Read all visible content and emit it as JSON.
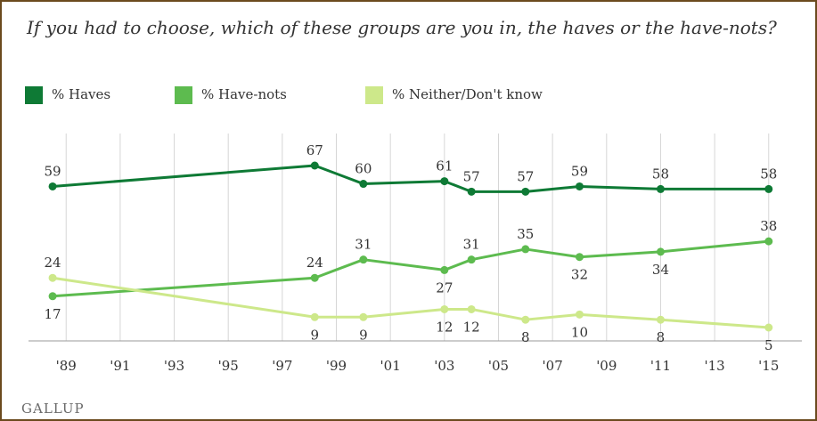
{
  "title": "If you had to choose, which of these groups are you in, the haves or the have-nots?",
  "brand": "GALLUP",
  "chart_data": {
    "type": "line",
    "title": "If you had to choose, which of these groups are you in, the haves or the have-nots?",
    "xlabel": "",
    "ylabel": "",
    "x_tick_labels": [
      "'89",
      "'91",
      "'93",
      "'95",
      "'97",
      "'99",
      "'01",
      "'03",
      "'05",
      "'07",
      "'09",
      "'11",
      "'13",
      "'15"
    ],
    "x_range": [
      1988.3,
      2015.7
    ],
    "ylim": [
      5,
      67
    ],
    "grid": "vertical",
    "legend_position": "top-left",
    "series": [
      {
        "name": "% Haves",
        "color": "#0e7a35",
        "x": [
          1988.5,
          1998.2,
          2000.0,
          2003.0,
          2004.0,
          2006.0,
          2008.0,
          2011.0,
          2015.0
        ],
        "values": [
          59,
          67,
          60,
          61,
          57,
          57,
          59,
          58,
          58
        ]
      },
      {
        "name": "% Have-nots",
        "color": "#5dbb4f",
        "x": [
          1988.5,
          1998.2,
          2000.0,
          2003.0,
          2004.0,
          2006.0,
          2008.0,
          2011.0,
          2015.0
        ],
        "values": [
          17,
          24,
          31,
          27,
          31,
          35,
          32,
          34,
          38
        ]
      },
      {
        "name": "% Neither/Don't know",
        "color": "#cde88a",
        "x": [
          1988.5,
          1998.2,
          2000.0,
          2003.0,
          2004.0,
          2006.0,
          2008.0,
          2011.0,
          2015.0
        ],
        "values": [
          24,
          9,
          9,
          12,
          12,
          8,
          10,
          8,
          5
        ]
      }
    ]
  }
}
